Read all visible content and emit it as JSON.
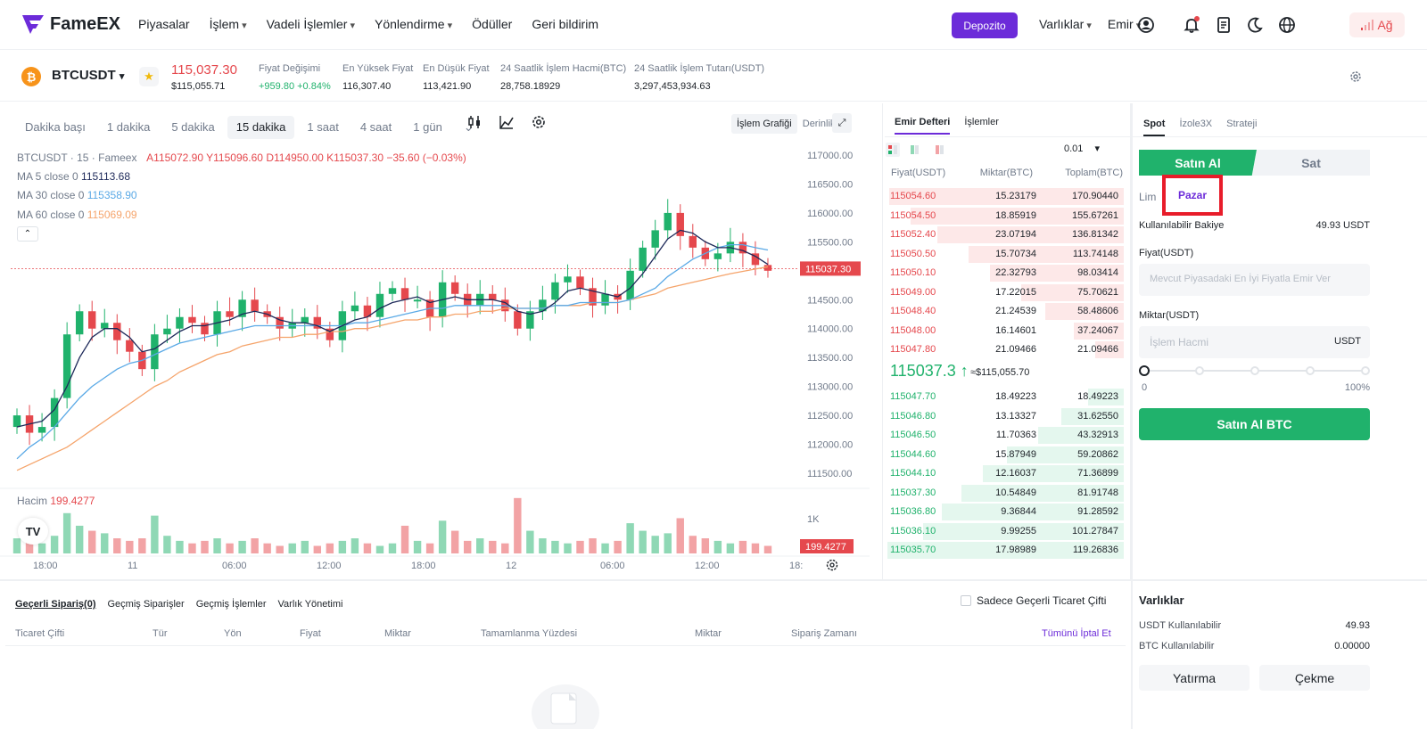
{
  "brand": {
    "name": "FameEX"
  },
  "nav": {
    "items": [
      "Piyasalar",
      "İşlem",
      "Vadeli İşlemler",
      "Yönlendirme",
      "Ödüller",
      "Geri bildirim"
    ],
    "deposit": "Depozito",
    "assets": "Varlıklar",
    "orders": "Emir",
    "network": "Ağ"
  },
  "ticker": {
    "symbol": "BTCUSDT",
    "last_price": "115,037.30",
    "last_price_usd": "$115,055.71",
    "stats": [
      {
        "label": "Fiyat Değişimi",
        "value": "+959.80 +0.84%"
      },
      {
        "label": "En Yüksek Fiyat",
        "value": "116,307.40"
      },
      {
        "label": "En Düşük Fiyat",
        "value": "113,421.90"
      },
      {
        "label": "24 Saatlik İşlem Hacmi(BTC)",
        "value": "28,758.18929"
      },
      {
        "label": "24 Saatlik İşlem Tutarı(USDT)",
        "value": "3,297,453,934.63"
      }
    ]
  },
  "timeframes": [
    "Dakika başı",
    "1 dakika",
    "5 dakika",
    "15 dakika",
    "1 saat",
    "4 saat",
    "1 gün"
  ],
  "chart_tabs": [
    "İşlem Grafiği",
    "Derinlik"
  ],
  "chart_legend": {
    "ohlc": "BTCUSDT · 15 · Fameex",
    "a": "A115072.90",
    "y": "Y115096.60",
    "d": "D114950.00",
    "k": "K115037.30",
    "chg": "−35.60 (−0.03%)",
    "ma5_label": "MA 5 close 0",
    "ma5": "115113.68",
    "ma30_label": "MA 30 close 0",
    "ma30": "115358.90",
    "ma60_label": "MA 60 close 0",
    "ma60": "115069.09",
    "vol_label": "Hacim",
    "vol": "199.4277"
  },
  "chart_data": {
    "type": "candlestick",
    "y_ticks": [
      117000,
      116500,
      116000,
      115500,
      115000,
      114500,
      114000,
      113500,
      113000,
      112500,
      112000,
      111500
    ],
    "y_tick_labels": [
      "117000.00",
      "116500.00",
      "116000.00",
      "115500.00",
      "115000.00",
      "114500.00",
      "114000.00",
      "113500.00",
      "113000.00",
      "112500.00",
      "112000.00",
      "111500.00"
    ],
    "x_tick_labels": [
      "18:00",
      "11",
      "06:00",
      "12:00",
      "18:00",
      "12",
      "06:00",
      "12:00",
      "18:"
    ],
    "price_tag": "115037.30",
    "vol_tick": "1K",
    "vol_tag": "199.4277",
    "close": [
      112500,
      112200,
      112300,
      112800,
      113900,
      114300,
      114000,
      114100,
      113800,
      113600,
      113300,
      113900,
      114000,
      114200,
      114100,
      113900,
      114300,
      114200,
      114500,
      114300,
      114200,
      114000,
      114100,
      114200,
      114000,
      113800,
      114300,
      114400,
      114200,
      114600,
      114700,
      114500,
      114500,
      114200,
      114800,
      114600,
      114400,
      114600,
      114500,
      114300,
      114000,
      114300,
      114500,
      114800,
      114900,
      114700,
      114400,
      114600,
      114500,
      115000,
      115400,
      115700,
      116000,
      115600,
      115400,
      115200,
      115300,
      115500,
      115300,
      115100,
      115000
    ],
    "ma5": [
      112300,
      112350,
      112400,
      112600,
      113000,
      113500,
      113850,
      114000,
      114000,
      113850,
      113600,
      113650,
      113800,
      113950,
      114050,
      114050,
      114100,
      114150,
      114250,
      114300,
      114250,
      114150,
      114100,
      114100,
      114050,
      113950,
      114050,
      114150,
      114200,
      114350,
      114450,
      114500,
      114550,
      114450,
      114500,
      114550,
      114500,
      114500,
      114500,
      114450,
      114300,
      114250,
      114300,
      114450,
      114650,
      114700,
      114650,
      114600,
      114550,
      114700,
      114950,
      115250,
      115550,
      115700,
      115650,
      115500,
      115400,
      115400,
      115350,
      115250,
      115110
    ],
    "ma30": [
      111750,
      111950,
      112100,
      112300,
      112550,
      112800,
      113000,
      113150,
      113300,
      113400,
      113450,
      113550,
      113650,
      113750,
      113800,
      113850,
      113900,
      113950,
      114000,
      114050,
      114050,
      114050,
      114050,
      114050,
      114050,
      114050,
      114050,
      114100,
      114100,
      114150,
      114200,
      114250,
      114300,
      114350,
      114350,
      114400,
      114400,
      114400,
      114400,
      114400,
      114350,
      114350,
      114350,
      114400,
      114400,
      114450,
      114450,
      114450,
      114450,
      114500,
      114600,
      114700,
      114900,
      115050,
      115200,
      115300,
      115400,
      115450,
      115450,
      115400,
      115360
    ],
    "ma60": [
      111550,
      111650,
      111750,
      111850,
      111950,
      112100,
      112250,
      112400,
      112550,
      112700,
      112850,
      113000,
      113100,
      113250,
      113350,
      113450,
      113550,
      113600,
      113700,
      113750,
      113800,
      113850,
      113850,
      113900,
      113900,
      113950,
      113950,
      114000,
      114000,
      114050,
      114100,
      114150,
      114150,
      114200,
      114200,
      114250,
      114250,
      114300,
      114300,
      114350,
      114350,
      114350,
      114350,
      114400,
      114400,
      114400,
      114450,
      114450,
      114450,
      114500,
      114550,
      114600,
      114700,
      114750,
      114800,
      114850,
      114900,
      114950,
      114990,
      115030,
      115070
    ],
    "volume": [
      0.6,
      0.5,
      0.4,
      0.7,
      1.6,
      1.1,
      0.9,
      0.8,
      0.6,
      0.5,
      0.6,
      1.5,
      0.7,
      0.5,
      0.4,
      0.5,
      0.6,
      0.4,
      0.5,
      0.6,
      0.4,
      0.3,
      0.4,
      0.5,
      0.3,
      0.4,
      0.5,
      0.6,
      0.4,
      0.3,
      0.4,
      1.1,
      0.5,
      0.4,
      1.3,
      0.9,
      0.5,
      0.6,
      0.5,
      0.4,
      2.2,
      0.9,
      0.6,
      0.5,
      0.4,
      0.5,
      0.6,
      0.4,
      0.5,
      1.2,
      0.9,
      0.7,
      0.8,
      1.4,
      0.7,
      0.6,
      0.5,
      0.4,
      0.5,
      0.4,
      0.3
    ]
  },
  "order_book": {
    "tabs": [
      "Emir Defteri",
      "İşlemler"
    ],
    "precision": "0.01",
    "headers": [
      "Fiyat(USDT)",
      "Miktar(BTC)",
      "Toplam(BTC)"
    ],
    "asks": [
      {
        "price": "115054.60",
        "amount": "15.23179",
        "total": "170.90440",
        "depth": 0.98
      },
      {
        "price": "115054.50",
        "amount": "18.85919",
        "total": "155.67261",
        "depth": 0.89
      },
      {
        "price": "115052.40",
        "amount": "23.07194",
        "total": "136.81342",
        "depth": 0.78
      },
      {
        "price": "115050.50",
        "amount": "15.70734",
        "total": "113.74148",
        "depth": 0.65
      },
      {
        "price": "115050.10",
        "amount": "22.32793",
        "total": "98.03414",
        "depth": 0.56
      },
      {
        "price": "115049.00",
        "amount": "17.22015",
        "total": "75.70621",
        "depth": 0.43
      },
      {
        "price": "115048.40",
        "amount": "21.24539",
        "total": "58.48606",
        "depth": 0.33
      },
      {
        "price": "115048.00",
        "amount": "16.14601",
        "total": "37.24067",
        "depth": 0.21
      },
      {
        "price": "115047.80",
        "amount": "21.09466",
        "total": "21.09466",
        "depth": 0.12
      }
    ],
    "mid_price": "115037.3",
    "mid_usd": "≈$115,055.70",
    "bids": [
      {
        "price": "115047.70",
        "amount": "18.49223",
        "total": "18.49223",
        "depth": 0.15
      },
      {
        "price": "115046.80",
        "amount": "13.13327",
        "total": "31.62550",
        "depth": 0.26
      },
      {
        "price": "115046.50",
        "amount": "11.70363",
        "total": "43.32913",
        "depth": 0.36
      },
      {
        "price": "115044.60",
        "amount": "15.87949",
        "total": "59.20862",
        "depth": 0.49
      },
      {
        "price": "115044.10",
        "amount": "12.16037",
        "total": "71.36899",
        "depth": 0.59
      },
      {
        "price": "115037.30",
        "amount": "10.54849",
        "total": "81.91748",
        "depth": 0.68
      },
      {
        "price": "115036.80",
        "amount": "9.36844",
        "total": "91.28592",
        "depth": 0.76
      },
      {
        "price": "115036.10",
        "amount": "9.99255",
        "total": "101.27847",
        "depth": 0.84
      },
      {
        "price": "115035.70",
        "amount": "17.98989",
        "total": "119.26836",
        "depth": 0.99
      }
    ]
  },
  "trade": {
    "tabs": [
      "Spot",
      "İzole3X",
      "Strateji"
    ],
    "buy": "Satın Al",
    "sell": "Sat",
    "order_type_limit": "Lim",
    "order_type_market": "Pazar",
    "balance_label": "Kullanılabilir Bakiye",
    "balance": "49.93 USDT",
    "price_label": "Fiyat(USDT)",
    "price_placeholder": "Mevcut Piyasadaki En İyi Fiyatla Emir Ver",
    "amount_label": "Miktar(USDT)",
    "amount_placeholder": "İşlem Hacmi",
    "amount_unit": "USDT",
    "slider_min": "0",
    "slider_max": "100%",
    "slider_value": 0,
    "submit": "Satın Al BTC"
  },
  "orders": {
    "tabs": [
      "Geçerli Sipariş(0)",
      "Geçmiş Siparişler",
      "Geçmiş İşlemler",
      "Varlık Yönetimi"
    ],
    "only_current": "Sadece Geçerli Ticaret Çifti",
    "columns": [
      "Ticaret Çifti",
      "Tür",
      "Yön",
      "Fiyat",
      "Miktar",
      "Tamamlanma Yüzdesi",
      "Miktar",
      "Sipariş Zamanı"
    ],
    "cancel_all": "Tümünü İptal Et"
  },
  "assets": {
    "title": "Varlıklar",
    "usdt_label": "USDT Kullanılabilir",
    "usdt": "49.93",
    "btc_label": "BTC Kullanılabilir",
    "btc": "0.00000",
    "deposit": "Yatırma",
    "withdraw": "Çekme"
  },
  "colors": {
    "accent": "#6c2bd9",
    "up": "#20b26c",
    "down": "#e5484d",
    "ma5": "#1e2a5a",
    "ma30": "#5aa9e6",
    "ma60": "#f5a46b"
  }
}
